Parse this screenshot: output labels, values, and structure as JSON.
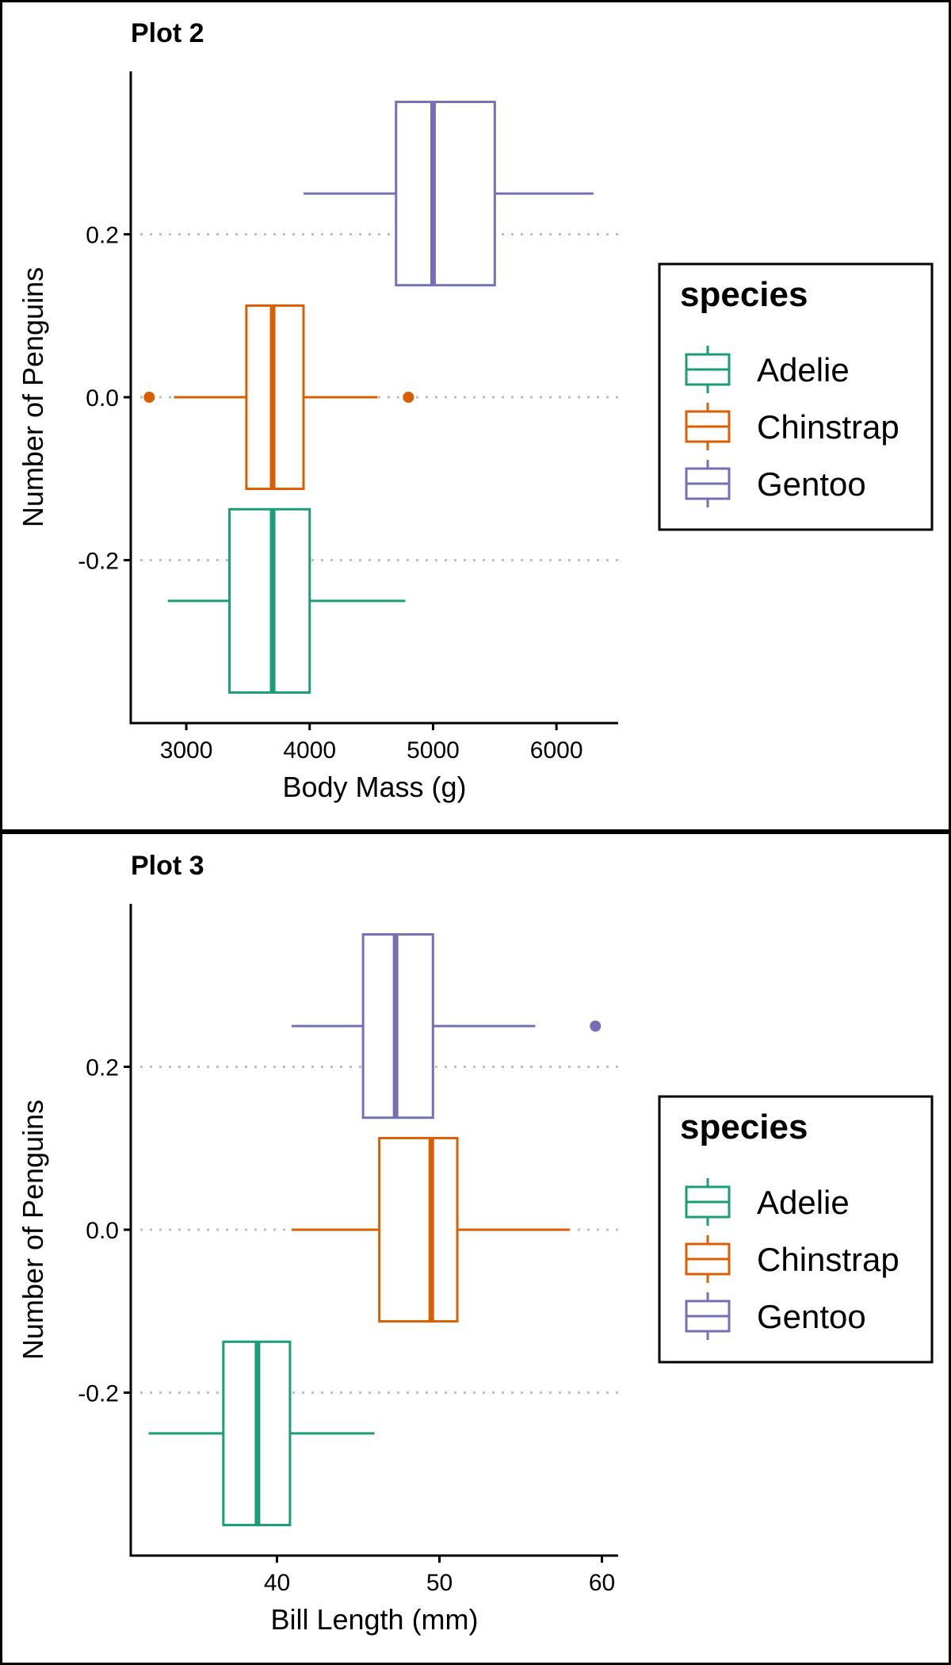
{
  "colors": {
    "Adelie": "#1b9e77",
    "Chinstrap": "#d95f02",
    "Gentoo": "#7570b3",
    "grid": "#bebebe",
    "border": "#000000"
  },
  "chart_data": [
    {
      "type": "boxplot",
      "title": "Plot 2",
      "xlabel": "Body Mass (g)",
      "ylabel": "Number of Penguins",
      "xlim": [
        2550,
        6500
      ],
      "ylim": [
        -0.4,
        0.4
      ],
      "x_ticks": [
        3000,
        4000,
        5000,
        6000
      ],
      "x_tick_labels": [
        "3000",
        "4000",
        "5000",
        "6000"
      ],
      "y_ticks": [
        -0.2,
        0.0,
        0.2
      ],
      "y_tick_labels": [
        "-0.2",
        "0.0",
        "0.2"
      ],
      "grid": "horizontal dotted",
      "legend": {
        "title": "species",
        "position": "right",
        "entries": [
          "Adelie",
          "Chinstrap",
          "Gentoo"
        ]
      },
      "series": [
        {
          "name": "Adelie",
          "y_center": -0.25,
          "whisker_low": 2850,
          "q1": 3350,
          "median": 3700,
          "q3": 4000,
          "whisker_high": 4775,
          "outliers": []
        },
        {
          "name": "Chinstrap",
          "y_center": 0.0,
          "whisker_low": 2900,
          "q1": 3487,
          "median": 3700,
          "q3": 3950,
          "whisker_high": 4550,
          "outliers": [
            2700,
            4800
          ]
        },
        {
          "name": "Gentoo",
          "y_center": 0.25,
          "whisker_low": 3950,
          "q1": 4700,
          "median": 5000,
          "q3": 5500,
          "whisker_high": 6300,
          "outliers": []
        }
      ]
    },
    {
      "type": "boxplot",
      "title": "Plot 3",
      "xlabel": "Bill Length (mm)",
      "ylabel": "Number of Penguins",
      "xlim": [
        31,
        61
      ],
      "ylim": [
        -0.4,
        0.4
      ],
      "x_ticks": [
        40,
        50,
        60
      ],
      "x_tick_labels": [
        "40",
        "50",
        "60"
      ],
      "y_ticks": [
        -0.2,
        0.0,
        0.2
      ],
      "y_tick_labels": [
        "-0.2",
        "0.0",
        "0.2"
      ],
      "grid": "horizontal dotted",
      "legend": {
        "title": "species",
        "position": "right",
        "entries": [
          "Adelie",
          "Chinstrap",
          "Gentoo"
        ]
      },
      "series": [
        {
          "name": "Adelie",
          "y_center": -0.25,
          "whisker_low": 32.1,
          "q1": 36.7,
          "median": 38.8,
          "q3": 40.8,
          "whisker_high": 46.0,
          "outliers": []
        },
        {
          "name": "Chinstrap",
          "y_center": 0.0,
          "whisker_low": 40.9,
          "q1": 46.3,
          "median": 49.5,
          "q3": 51.1,
          "whisker_high": 58.0,
          "outliers": []
        },
        {
          "name": "Gentoo",
          "y_center": 0.25,
          "whisker_low": 40.9,
          "q1": 45.3,
          "median": 47.3,
          "q3": 49.6,
          "whisker_high": 55.9,
          "outliers": [
            59.6
          ]
        }
      ]
    }
  ]
}
